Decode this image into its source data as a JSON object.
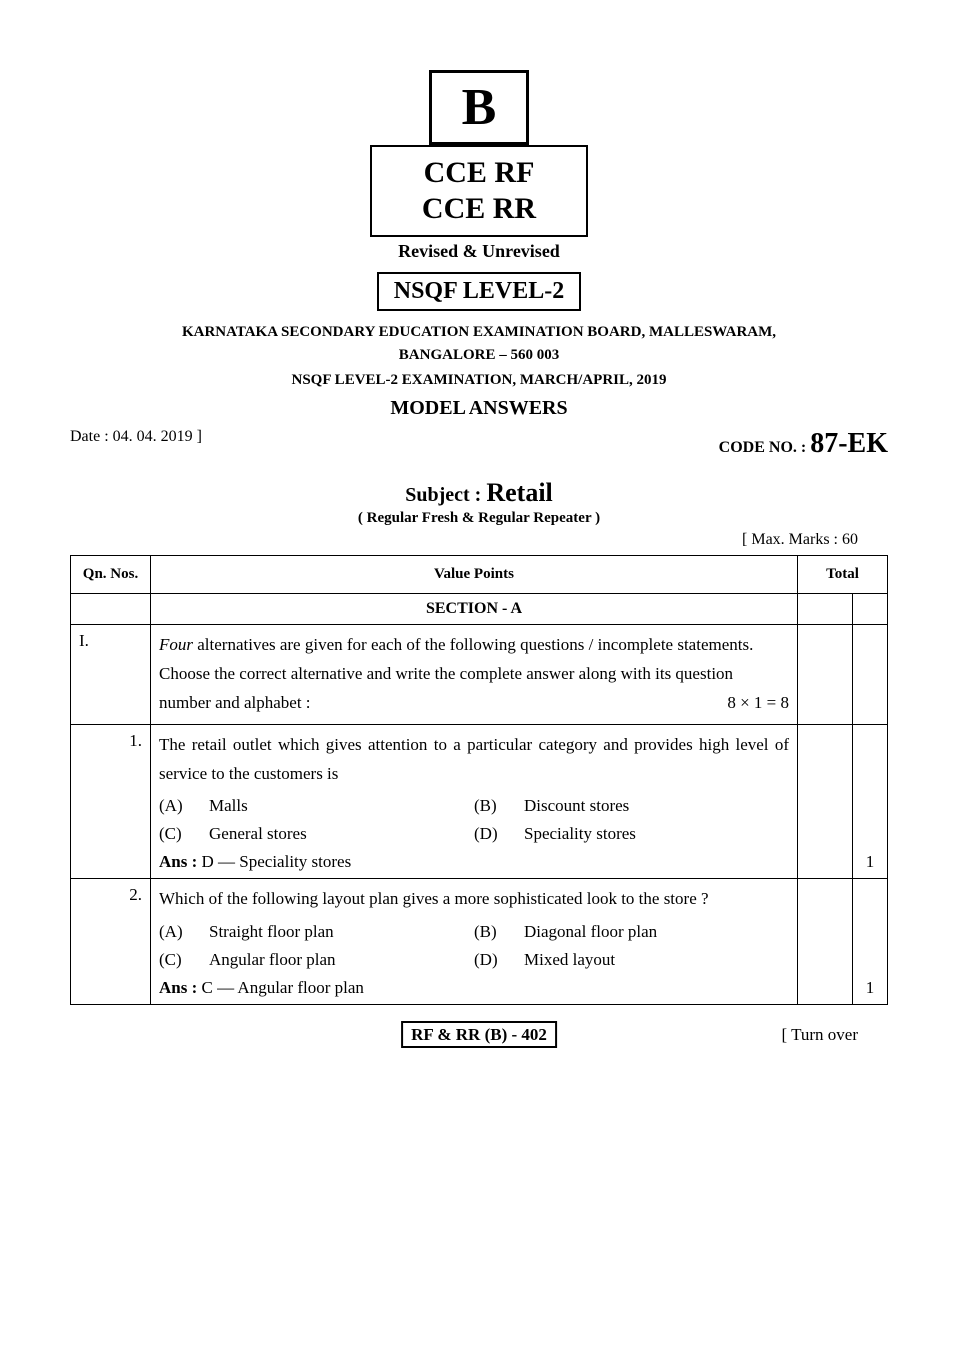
{
  "header": {
    "box_b": "B",
    "cce_line1": "CCE RF",
    "cce_line2": "CCE RR",
    "revised": "Revised & Unrevised",
    "nsqf": "NSQF LEVEL-2",
    "board_line1": "KARNATAKA SECONDARY EDUCATION EXAMINATION BOARD, MALLESWARAM,",
    "board_line2": "BANGALORE – 560 003",
    "exam": "NSQF LEVEL-2 EXAMINATION, MARCH/APRIL, 2019",
    "model_answers": "MODEL ANSWERS",
    "date": "Date : 04. 04. 2019 ]",
    "code_label": "CODE NO. : ",
    "code_value": "87-EK",
    "subject_label": "Subject : ",
    "subject_value": "Retail",
    "regular": "( Regular Fresh & Regular Repeater )",
    "max_marks": "[ Max. Marks : 60"
  },
  "table": {
    "col_qn": "Qn. Nos.",
    "col_vp": "Value Points",
    "col_total": "Total",
    "section_a": "SECTION - A",
    "instruction_roman": "I.",
    "instruction_italic": "Four",
    "instruction_rest": " alternatives are given for each of the following questions / incomplete statements. Choose the correct alternative and write the complete answer along with its question number and alphabet :",
    "instruction_marks": "8 × 1 = 8",
    "q1": {
      "num": "1.",
      "text": "The retail outlet which gives attention to a particular category and provides high level of service to the customers is",
      "opts": {
        "a_label": "(A)",
        "a_text": "Malls",
        "b_label": "(B)",
        "b_text": "Discount stores",
        "c_label": "(C)",
        "c_text": "General stores",
        "d_label": "(D)",
        "d_text": "Speciality stores"
      },
      "ans_label": "Ans :",
      "ans_text": " D — Speciality stores",
      "mark": "1"
    },
    "q2": {
      "num": "2.",
      "text": "Which of the following layout plan gives a more sophisticated look to the  store ?",
      "opts": {
        "a_label": "(A)",
        "a_text": "Straight floor plan",
        "b_label": "(B)",
        "b_text": "Diagonal floor plan",
        "c_label": "(C)",
        "c_text": "Angular floor plan",
        "d_label": "(D)",
        "d_text": "Mixed layout"
      },
      "ans_label": "Ans :",
      "ans_text": " C — Angular floor plan",
      "mark": "1"
    }
  },
  "footer": {
    "box": "RF & RR (B) - 402",
    "turn_over": "[ Turn over"
  }
}
